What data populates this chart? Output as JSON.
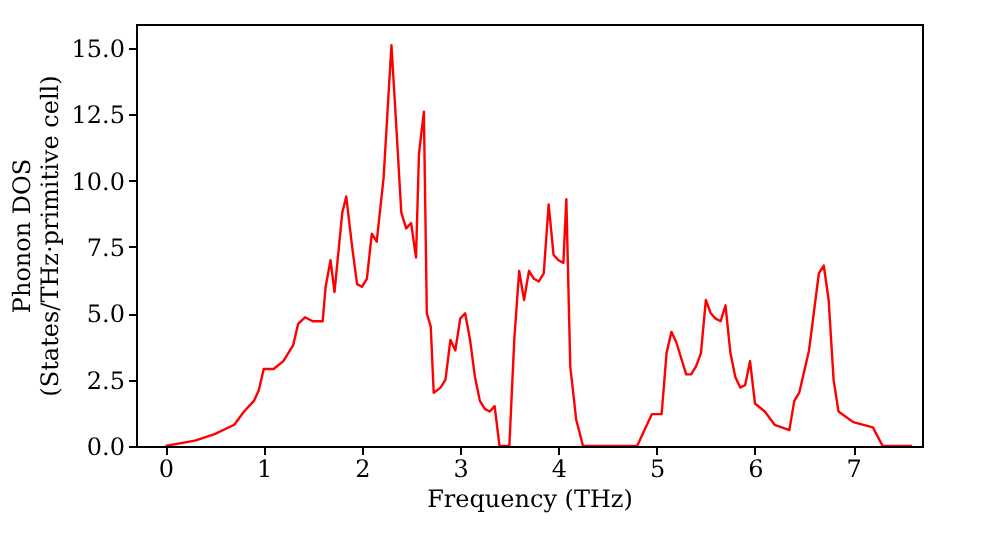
{
  "chart_data": {
    "type": "line",
    "xlabel": "Frequency (THz)",
    "ylabel": "Phonon DOS\n(States/THz·primitive cell)",
    "xlim": [
      -0.3,
      7.7
    ],
    "xticks": [
      0,
      1,
      2,
      3,
      4,
      5,
      6,
      7
    ],
    "ylim": [
      0,
      15.9
    ],
    "yticks": [
      {
        "value": 0,
        "label": "0.0"
      },
      {
        "value": 2.5,
        "label": "2.5"
      },
      {
        "value": 5,
        "label": "5.0"
      },
      {
        "value": 7.5,
        "label": "7.5"
      },
      {
        "value": 10,
        "label": "10.0"
      },
      {
        "value": 12.5,
        "label": "12.5"
      },
      {
        "value": 15,
        "label": "15.0"
      }
    ],
    "grid": false,
    "marker": "none",
    "line_style": "solid",
    "series": [
      {
        "color": "#ff0000",
        "x": [
          0,
          0.3,
          0.5,
          0.7,
          0.8,
          0.9,
          0.95,
          1.0,
          1.1,
          1.2,
          1.3,
          1.35,
          1.42,
          1.5,
          1.6,
          1.63,
          1.68,
          1.72,
          1.8,
          1.84,
          1.9,
          1.95,
          2.0,
          2.05,
          2.1,
          2.15,
          2.22,
          2.3,
          2.35,
          2.4,
          2.45,
          2.5,
          2.55,
          2.58,
          2.63,
          2.66,
          2.7,
          2.73,
          2.8,
          2.85,
          2.9,
          2.95,
          3.0,
          3.05,
          3.1,
          3.15,
          3.2,
          3.25,
          3.3,
          3.35,
          3.4,
          3.5,
          3.55,
          3.6,
          3.65,
          3.7,
          3.75,
          3.8,
          3.85,
          3.9,
          3.95,
          4.0,
          4.05,
          4.08,
          4.12,
          4.18,
          4.25,
          4.5,
          4.8,
          4.85,
          4.95,
          5.05,
          5.1,
          5.15,
          5.2,
          5.3,
          5.35,
          5.4,
          5.45,
          5.5,
          5.55,
          5.6,
          5.65,
          5.7,
          5.75,
          5.8,
          5.85,
          5.9,
          5.95,
          6.0,
          6.1,
          6.2,
          6.35,
          6.4,
          6.45,
          6.55,
          6.65,
          6.7,
          6.75,
          6.8,
          6.85,
          7.0,
          7.2,
          7.3,
          7.6
        ],
        "values": [
          0,
          0.2,
          0.45,
          0.8,
          1.3,
          1.7,
          2.1,
          2.9,
          2.9,
          3.2,
          3.8,
          4.6,
          4.85,
          4.7,
          4.7,
          6.0,
          7.0,
          5.8,
          8.8,
          9.4,
          7.5,
          6.1,
          6.0,
          6.3,
          8.0,
          7.7,
          10.1,
          15.1,
          12.0,
          8.8,
          8.2,
          8.4,
          7.1,
          11.0,
          12.6,
          5.0,
          4.5,
          2.0,
          2.2,
          2.5,
          4.0,
          3.6,
          4.8,
          5.0,
          4.0,
          2.6,
          1.7,
          1.4,
          1.3,
          1.5,
          0,
          0,
          4.0,
          6.6,
          5.5,
          6.6,
          6.3,
          6.2,
          6.5,
          9.1,
          7.2,
          7.0,
          6.9,
          9.3,
          3.0,
          1.0,
          0,
          0,
          0,
          0.4,
          1.2,
          1.2,
          3.5,
          4.3,
          3.9,
          2.7,
          2.7,
          3.0,
          3.5,
          5.5,
          5.0,
          4.8,
          4.7,
          5.3,
          3.5,
          2.6,
          2.2,
          2.3,
          3.2,
          1.6,
          1.3,
          0.8,
          0.6,
          1.7,
          2.0,
          3.6,
          6.5,
          6.8,
          5.5,
          2.5,
          1.3,
          0.9,
          0.7,
          0,
          0
        ]
      }
    ]
  }
}
